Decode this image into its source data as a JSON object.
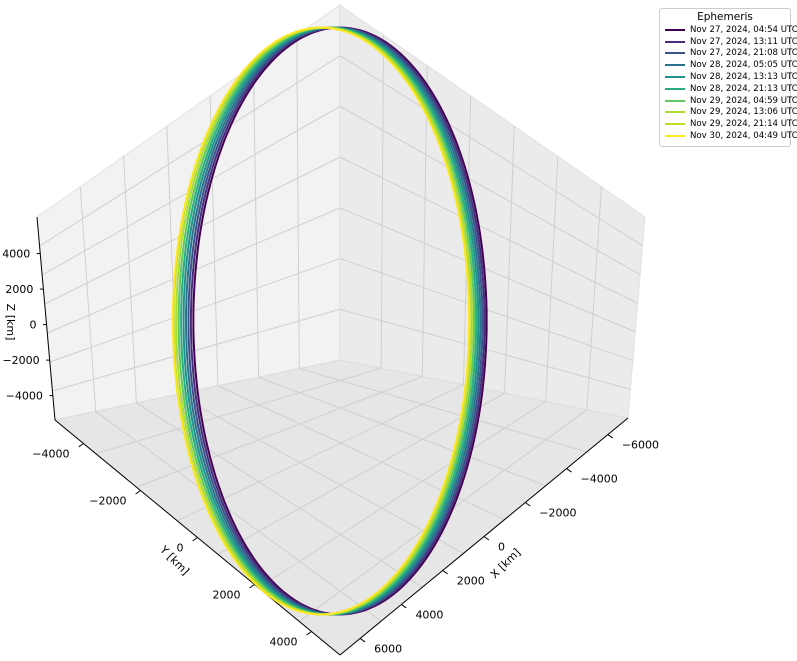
{
  "chart_data": {
    "type": "line",
    "projection": "3d",
    "legend_title": "Ephemeris",
    "legend_position": "top-right",
    "grid": true,
    "xlabel": "X [km]",
    "ylabel": "Y [km]",
    "zlabel": "Z [km]",
    "xlim": [
      -7000,
      7000
    ],
    "ylim": [
      -5000,
      5000
    ],
    "zlim": [
      -5000,
      5000
    ],
    "x_ticks": [
      "6000",
      "4000",
      "2000",
      "0",
      "−2000",
      "−4000",
      "−6000"
    ],
    "y_ticks": [
      "−4000",
      "−2000",
      "0",
      "2000",
      "4000"
    ],
    "z_ticks": [
      "4000",
      "2000",
      "0",
      "−2000",
      "−4000"
    ],
    "orbit": {
      "semi_major_km": 5600,
      "semi_minor_km": 3900,
      "center_km": [
        0,
        0,
        0
      ]
    },
    "series": [
      {
        "name": "Nov 27, 2024, 04:54 UTC",
        "color": "#440154",
        "x_offset_km": 0
      },
      {
        "name": "Nov 27, 2024, 13:11 UTC",
        "color": "#472d7b",
        "x_offset_km": -60
      },
      {
        "name": "Nov 27, 2024, 21:08 UTC",
        "color": "#3b528b",
        "x_offset_km": -120
      },
      {
        "name": "Nov 28, 2024, 05:05 UTC",
        "color": "#2c728e",
        "x_offset_km": -180
      },
      {
        "name": "Nov 28, 2024, 13:13 UTC",
        "color": "#21918c",
        "x_offset_km": -240
      },
      {
        "name": "Nov 28, 2024, 21:13 UTC",
        "color": "#28ae80",
        "x_offset_km": -300
      },
      {
        "name": "Nov 29, 2024, 04:59 UTC",
        "color": "#5ec962",
        "x_offset_km": -360
      },
      {
        "name": "Nov 29, 2024, 13:06 UTC",
        "color": "#addc30",
        "x_offset_km": -420
      },
      {
        "name": "Nov 29, 2024, 21:14 UTC",
        "color": "#bddf26",
        "x_offset_km": -480
      },
      {
        "name": "Nov 30, 2024, 04:49 UTC",
        "color": "#fde725",
        "x_offset_km": -500
      }
    ]
  }
}
